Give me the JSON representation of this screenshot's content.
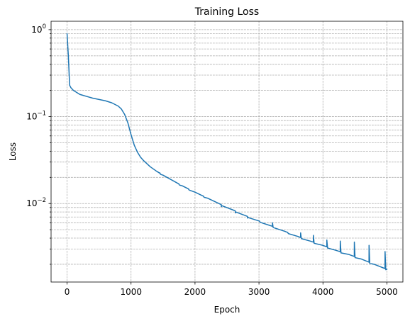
{
  "chart_data": {
    "type": "line",
    "title": "Training Loss",
    "xlabel": "Epoch",
    "ylabel": "Loss",
    "xlim": [
      -250,
      5250
    ],
    "ylim": [
      0.00125,
      1.25
    ],
    "yscale": "log",
    "grid": true,
    "legend": "none",
    "colors": {
      "series": "#1f77b4",
      "grid": "#b0b0b0",
      "axis": "#000000"
    },
    "xticks": [
      0,
      1000,
      2000,
      3000,
      4000,
      5000
    ],
    "xtick_labels": [
      "0",
      "1000",
      "2000",
      "3000",
      "4000",
      "5000"
    ],
    "yticks": [
      {
        "value": 1,
        "base": "10",
        "exp": "0"
      },
      {
        "value": 0.1,
        "base": "10",
        "exp": "−1"
      },
      {
        "value": 0.01,
        "base": "10",
        "exp": "−2"
      }
    ],
    "series": [
      {
        "x": [
          0,
          20,
          40,
          60,
          100,
          200,
          400,
          600,
          700,
          800,
          850,
          900,
          950,
          1000,
          1050,
          1100,
          1150,
          1200,
          1300,
          1400,
          1500,
          1600,
          1800,
          2000,
          2200,
          2400,
          2600,
          2800,
          3000,
          3200,
          3400,
          3600,
          3800,
          4000,
          4200,
          4400,
          4600,
          4800,
          5000
        ],
        "y": [
          0.9,
          0.5,
          0.23,
          0.215,
          0.2,
          0.18,
          0.163,
          0.152,
          0.144,
          0.132,
          0.122,
          0.106,
          0.085,
          0.062,
          0.047,
          0.039,
          0.034,
          0.031,
          0.0265,
          0.0235,
          0.0212,
          0.0193,
          0.016,
          0.0135,
          0.0115,
          0.0098,
          0.0084,
          0.0072,
          0.0063,
          0.0055,
          0.0048,
          0.0042,
          0.0037,
          0.0033,
          0.0029,
          0.0026,
          0.0023,
          0.002,
          0.00175
        ]
      }
    ],
    "spikes": [
      {
        "x": 1450,
        "top": 0.0225
      },
      {
        "x": 1750,
        "top": 0.0165
      },
      {
        "x": 1900,
        "top": 0.0145
      },
      {
        "x": 2130,
        "top": 0.0122
      },
      {
        "x": 2410,
        "top": 0.0092
      },
      {
        "x": 2630,
        "top": 0.0078
      },
      {
        "x": 2820,
        "top": 0.0068
      },
      {
        "x": 3010,
        "top": 0.0062
      },
      {
        "x": 3210,
        "top": 0.006
      },
      {
        "x": 3450,
        "top": 0.0046
      },
      {
        "x": 3650,
        "top": 0.0046
      },
      {
        "x": 3850,
        "top": 0.0043
      },
      {
        "x": 4060,
        "top": 0.0038
      },
      {
        "x": 4270,
        "top": 0.0037
      },
      {
        "x": 4490,
        "top": 0.0036
      },
      {
        "x": 4720,
        "top": 0.0033
      },
      {
        "x": 4970,
        "top": 0.0028
      }
    ]
  }
}
